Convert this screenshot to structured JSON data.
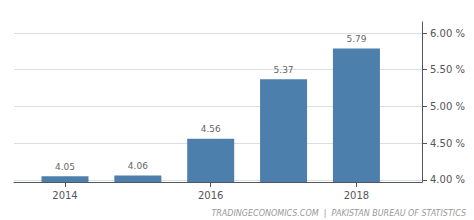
{
  "chart_data": {
    "type": "bar",
    "x": [
      2014,
      2015,
      2016,
      2017,
      2018
    ],
    "values": [
      4.05,
      4.06,
      4.56,
      5.37,
      5.79
    ],
    "color": "#4d7fac",
    "xlim": [
      2013.3,
      2018.9
    ],
    "xticks": [
      2014,
      2016,
      2018
    ],
    "ylim": [
      3.97,
      6.15
    ],
    "yticks": [
      {
        "value": 4.0,
        "label": "4.00 %"
      },
      {
        "value": 4.5,
        "label": "4.50 %"
      },
      {
        "value": 5.0,
        "label": "5.00 %"
      },
      {
        "value": 5.5,
        "label": "5.50 %"
      },
      {
        "value": 6.0,
        "label": "6.00 %"
      }
    ],
    "grid": true,
    "data_labels": true,
    "annotations": [
      "TRADINGECONOMICS.COM  |  PAKISTAN BUREAU OF STATISTICS"
    ]
  }
}
